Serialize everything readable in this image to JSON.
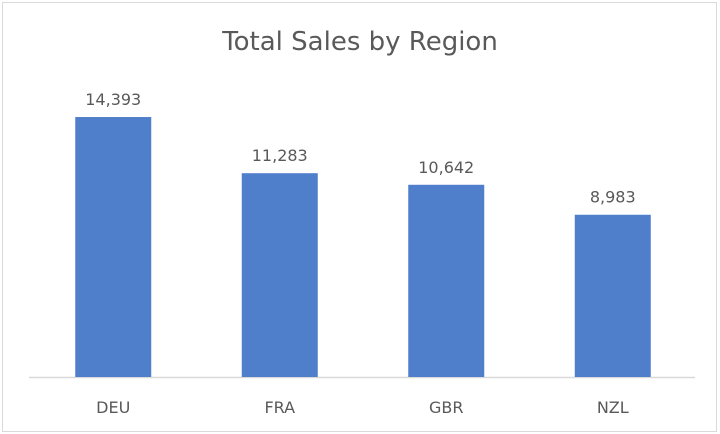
{
  "chart_data": {
    "type": "bar",
    "title": "Total Sales by Region",
    "categories": [
      "DEU",
      "FRA",
      "GBR",
      "NZL"
    ],
    "values": [
      14393,
      11283,
      10642,
      8983
    ],
    "data_labels": [
      "14,393",
      "11,283",
      "10,642",
      "8,983"
    ],
    "xlabel": "",
    "ylabel": "",
    "ylim": [
      0,
      16000
    ],
    "grid": false,
    "legend": "none",
    "bar_color": "#4F7ECB",
    "text_color": "#595959"
  }
}
